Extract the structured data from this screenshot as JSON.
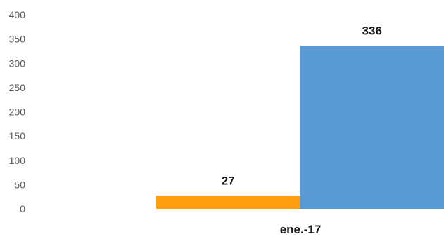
{
  "chart_data": {
    "type": "bar",
    "categories": [
      "ene.-17"
    ],
    "series": [
      {
        "values": [
          27
        ],
        "color": "#FF9E0F"
      },
      {
        "values": [
          336
        ],
        "color": "#5B9BD5"
      }
    ],
    "ylim": [
      0,
      400
    ],
    "yticks": [
      0,
      50,
      100,
      150,
      200,
      250,
      300,
      350,
      400
    ],
    "grid": false,
    "legend": "none",
    "title": "",
    "xlabel": "",
    "ylabel": ""
  }
}
